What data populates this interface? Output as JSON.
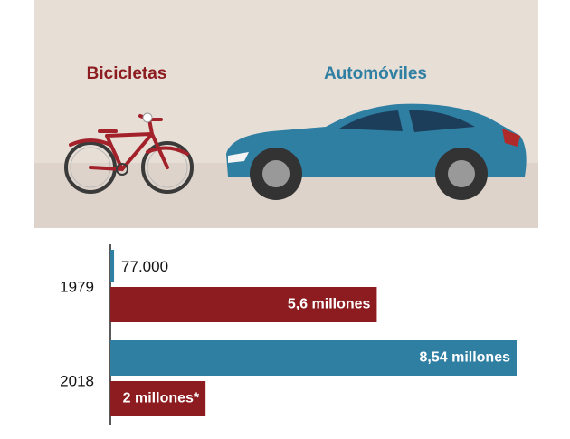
{
  "chart_data": {
    "type": "bar",
    "orientation": "horizontal",
    "categories": [
      "1979",
      "2018"
    ],
    "series": [
      {
        "name": "Automóviles",
        "color": "#2f7fa3",
        "values": [
          77000,
          8540000
        ],
        "value_labels": [
          "77.000",
          "8,54 millones"
        ]
      },
      {
        "name": "Bicicletas",
        "color": "#8c1c1f",
        "values": [
          5600000,
          2000000
        ],
        "value_labels": [
          "5,6 millones",
          "2 millones*"
        ]
      }
    ]
  }
}
